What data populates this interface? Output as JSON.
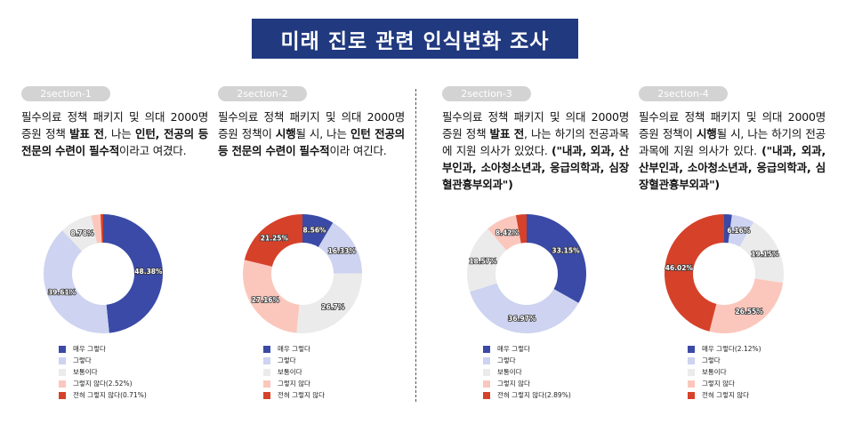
{
  "title": "미래 진로 관련 인식변화 조사",
  "colors": [
    "#3a4aa6",
    "#cdd3f0",
    "#ebebeb",
    "#fbc7bd",
    "#d6412a"
  ],
  "sections": [
    {
      "tag": "2section-1",
      "desc_parts": [
        {
          "t": "필수의료 정책 패키지 및 의대 2000명 증원 정책 ",
          "b": false
        },
        {
          "t": "발표 전",
          "b": true
        },
        {
          "t": ", 나는 ",
          "b": false
        },
        {
          "t": "인턴, 전공의 등 전문의 수련이 필수적",
          "b": true
        },
        {
          "t": "이라고 여겼다.",
          "b": false
        }
      ],
      "legend": [
        "매우 그렇다",
        "그렇다",
        "보통이다",
        "그렇지 않다(2.52%)",
        "전혀 그렇지 않다(0.71%)"
      ]
    },
    {
      "tag": "2section-2",
      "desc_parts": [
        {
          "t": "필수의료 정책 패키지 및 의대 2000명 증원 정책이 ",
          "b": false
        },
        {
          "t": "시행",
          "b": true
        },
        {
          "t": "될 시, 나는 ",
          "b": false
        },
        {
          "t": "인턴 전공의 등 전문의 수련이 필수적",
          "b": true
        },
        {
          "t": "이라 여긴다.",
          "b": false
        }
      ],
      "legend": [
        "매우 그렇다",
        "그렇다",
        "보통이다",
        "그렇지 않다",
        "전혀 그렇지 않다"
      ]
    },
    {
      "tag": "2section-3",
      "desc_parts": [
        {
          "t": "필수의료 정책 패키지 및 의대 2000명 증원 정책 ",
          "b": false
        },
        {
          "t": "발표 전",
          "b": true
        },
        {
          "t": ", 나는 하기의 전공과목에 지원 의사가 있었다. ",
          "b": false
        },
        {
          "t": "(\"내과, 외과, 산부인과, 소아청소년과, 응급의학과, 심장혈관흉부외과\")",
          "b": true
        }
      ],
      "legend": [
        "매우 그렇다",
        "그렇다",
        "보통이다",
        "그렇지 않다",
        "전혀 그렇지 않다(2.89%)"
      ]
    },
    {
      "tag": "2section-4",
      "desc_parts": [
        {
          "t": "필수의료 정책 패키지 및 의대 2000명 증원 정책이 ",
          "b": false
        },
        {
          "t": "시행",
          "b": true
        },
        {
          "t": "될 시, 나는 하기의 전공과목에 지원 의사가 있다. ",
          "b": false
        },
        {
          "t": "(\"내과, 외과, 산부인과, 소아청소년과, 응급의학과, 심장혈관흉부외과\")",
          "b": true
        }
      ],
      "legend": [
        "매우 그렇다(2.12%)",
        "그렇다",
        "보통이다",
        "그렇지 않다",
        "전혀 그렇지 않다"
      ]
    }
  ],
  "chart_data": [
    {
      "type": "pie",
      "categories": [
        "매우 그렇다",
        "그렇다",
        "보통이다",
        "그렇지 않다",
        "전혀 그렇지 않다"
      ],
      "values": [
        48.38,
        39.61,
        8.78,
        2.52,
        0.71
      ],
      "labels": [
        "48.38%",
        "39.61%",
        "8.78%",
        "",
        ""
      ]
    },
    {
      "type": "pie",
      "categories": [
        "매우 그렇다",
        "그렇다",
        "보통이다",
        "그렇지 않다",
        "전혀 그렇지 않다"
      ],
      "values": [
        8.56,
        16.33,
        26.7,
        27.16,
        21.25
      ],
      "labels": [
        "8.56%",
        "16.33%",
        "26.7%",
        "27.16%",
        "21.25%"
      ]
    },
    {
      "type": "pie",
      "categories": [
        "매우 그렇다",
        "그렇다",
        "보통이다",
        "그렇지 않다",
        "전혀 그렇지 않다"
      ],
      "values": [
        33.15,
        36.97,
        18.57,
        8.42,
        2.89
      ],
      "labels": [
        "33.15%",
        "36.97%",
        "18.57%",
        "8.42%",
        ""
      ]
    },
    {
      "type": "pie",
      "categories": [
        "매우 그렇다",
        "그렇다",
        "보통이다",
        "그렇지 않다",
        "전혀 그렇지 않다"
      ],
      "values": [
        2.12,
        6.16,
        19.15,
        26.55,
        46.02
      ],
      "labels": [
        "",
        "6.16%",
        "19.15%",
        "26.55%",
        "46.02%"
      ]
    }
  ]
}
